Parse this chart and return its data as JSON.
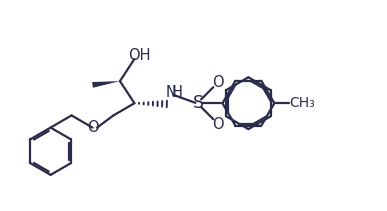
{
  "bg_color": "#ffffff",
  "line_color": "#2b2b4b",
  "bond_lw": 1.6,
  "font_size": 10.5,
  "fig_w": 3.87,
  "fig_h": 2.11,
  "dpi": 100,
  "xlim": [
    0,
    10
  ],
  "ylim": [
    0,
    5.5
  ]
}
